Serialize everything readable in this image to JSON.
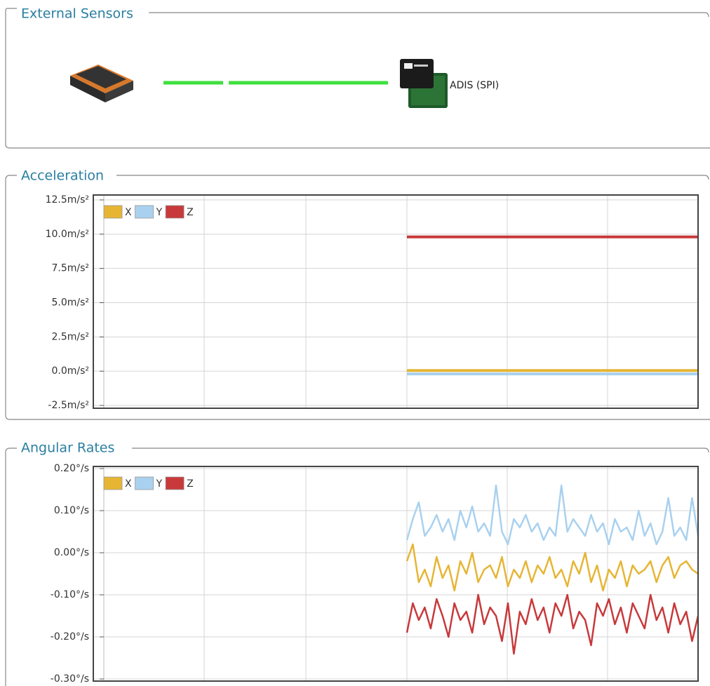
{
  "panels": {
    "external_sensors": {
      "title": "External Sensors",
      "sensor_label": "ADIS (SPI)"
    }
  },
  "chart_data": [
    {
      "type": "line",
      "title": "Acceleration",
      "x": [
        51,
        100
      ],
      "xlim": [
        0,
        100
      ],
      "ylim": [
        -2.5,
        12.5
      ],
      "yticks": [
        {
          "value": -2.5,
          "label": "-2.5m/s²"
        },
        {
          "value": 0,
          "label": "0.0m/s²"
        },
        {
          "value": 2.5,
          "label": "2.5m/s²"
        },
        {
          "value": 5,
          "label": "5.0m/s²"
        },
        {
          "value": 7.5,
          "label": "7.5m/s²"
        },
        {
          "value": 10,
          "label": "10.0m/s²"
        },
        {
          "value": 12.5,
          "label": "12.5m/s²"
        }
      ],
      "grid": true,
      "legend": "top-left",
      "series": [
        {
          "name": "X",
          "color": "#e6b534",
          "values": [
            0.05,
            0.05
          ]
        },
        {
          "name": "Y",
          "color": "#a9d1ef",
          "values": [
            -0.2,
            -0.2
          ]
        },
        {
          "name": "Z",
          "color": "#c8393b",
          "values": [
            9.8,
            9.8
          ]
        }
      ]
    },
    {
      "type": "line",
      "title": "Angular Rates",
      "x": [
        51,
        52,
        53,
        54,
        55,
        56,
        57,
        58,
        59,
        60,
        61,
        62,
        63,
        64,
        65,
        66,
        67,
        68,
        69,
        70,
        71,
        72,
        73,
        74,
        75,
        76,
        77,
        78,
        79,
        80,
        81,
        82,
        83,
        84,
        85,
        86,
        87,
        88,
        89,
        90,
        91,
        92,
        93,
        94,
        95,
        96,
        97,
        98,
        99,
        100
      ],
      "xlim": [
        0,
        100
      ],
      "ylim": [
        -0.3,
        0.2
      ],
      "yticks": [
        {
          "value": -0.3,
          "label": "-0.30°/s"
        },
        {
          "value": -0.2,
          "label": "-0.20°/s"
        },
        {
          "value": -0.1,
          "label": "-0.10°/s"
        },
        {
          "value": 0,
          "label": "0.00°/s"
        },
        {
          "value": 0.1,
          "label": "0.10°/s"
        },
        {
          "value": 0.2,
          "label": "0.20°/s"
        }
      ],
      "grid": true,
      "legend": "top-left",
      "series": [
        {
          "name": "X",
          "color": "#e6b534",
          "values": [
            -0.02,
            0.02,
            -0.07,
            -0.04,
            -0.08,
            -0.01,
            -0.06,
            -0.03,
            -0.09,
            -0.02,
            -0.05,
            0.0,
            -0.07,
            -0.04,
            -0.03,
            -0.06,
            -0.01,
            -0.08,
            -0.04,
            -0.06,
            -0.02,
            -0.07,
            -0.03,
            -0.05,
            -0.01,
            -0.06,
            -0.04,
            -0.08,
            -0.02,
            -0.05,
            0.0,
            -0.07,
            -0.03,
            -0.09,
            -0.04,
            -0.06,
            -0.02,
            -0.08,
            -0.03,
            -0.05,
            -0.04,
            -0.02,
            -0.07,
            -0.03,
            -0.01,
            -0.06,
            -0.03,
            -0.02,
            -0.04,
            -0.05
          ]
        },
        {
          "name": "Y",
          "color": "#a9d1ef",
          "values": [
            0.03,
            0.08,
            0.12,
            0.04,
            0.06,
            0.09,
            0.05,
            0.08,
            0.03,
            0.1,
            0.06,
            0.11,
            0.05,
            0.07,
            0.04,
            0.16,
            0.05,
            0.02,
            0.08,
            0.06,
            0.09,
            0.05,
            0.07,
            0.03,
            0.06,
            0.04,
            0.16,
            0.05,
            0.08,
            0.06,
            0.04,
            0.09,
            0.05,
            0.07,
            0.02,
            0.08,
            0.05,
            0.06,
            0.03,
            0.1,
            0.04,
            0.07,
            0.02,
            0.05,
            0.13,
            0.04,
            0.06,
            0.03,
            0.13,
            0.04
          ]
        },
        {
          "name": "Z",
          "color": "#c8393b",
          "values": [
            -0.19,
            -0.12,
            -0.16,
            -0.13,
            -0.18,
            -0.11,
            -0.15,
            -0.2,
            -0.12,
            -0.16,
            -0.14,
            -0.19,
            -0.1,
            -0.17,
            -0.13,
            -0.15,
            -0.21,
            -0.12,
            -0.24,
            -0.14,
            -0.17,
            -0.11,
            -0.16,
            -0.13,
            -0.19,
            -0.12,
            -0.15,
            -0.1,
            -0.18,
            -0.14,
            -0.16,
            -0.22,
            -0.12,
            -0.15,
            -0.11,
            -0.17,
            -0.13,
            -0.19,
            -0.12,
            -0.15,
            -0.18,
            -0.1,
            -0.16,
            -0.13,
            -0.19,
            -0.12,
            -0.17,
            -0.14,
            -0.21,
            -0.15
          ]
        }
      ]
    }
  ]
}
